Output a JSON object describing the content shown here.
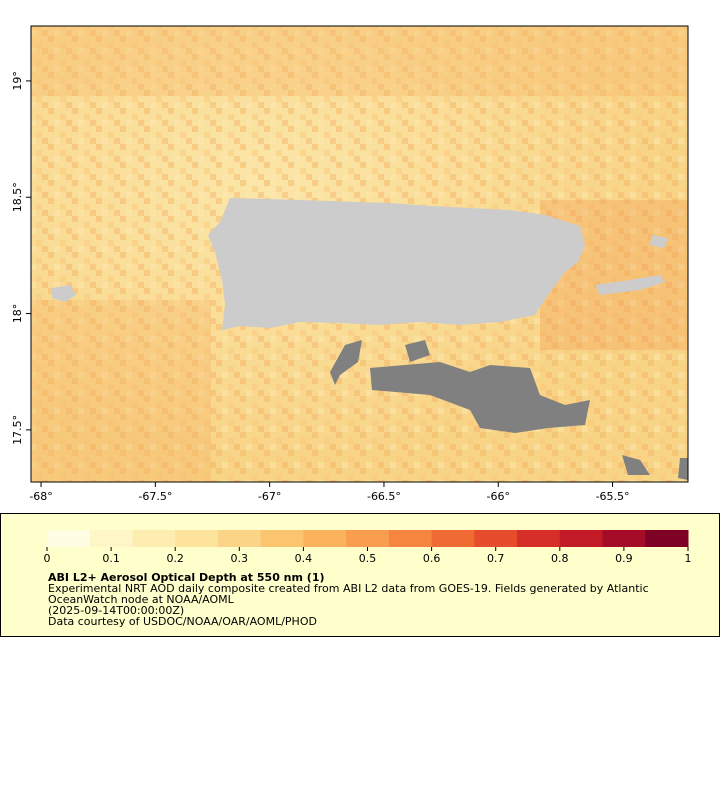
{
  "map": {
    "xlim": [
      -68.044,
      -65.17
    ],
    "ylim": [
      17.276,
      19.236
    ],
    "xticks": [
      {
        "value": -68,
        "label": "-68°"
      },
      {
        "value": -67.5,
        "label": "-67.5°"
      },
      {
        "value": -67,
        "label": "-67°"
      },
      {
        "value": -66.5,
        "label": "-66.5°"
      },
      {
        "value": -66,
        "label": "-66°"
      },
      {
        "value": -65.5,
        "label": "-65.5°"
      }
    ],
    "yticks": [
      {
        "value": 17.5,
        "label": "17.5°"
      },
      {
        "value": 18,
        "label": "18°"
      },
      {
        "value": 18.5,
        "label": "18.5°"
      },
      {
        "value": 19,
        "label": "19°"
      }
    ]
  },
  "legend": {
    "colorbar_lim": [
      0,
      1
    ],
    "colorbar_ticks": [
      0,
      0.1,
      0.2,
      0.3,
      0.4,
      0.5,
      0.6,
      0.7,
      0.8,
      0.9,
      1
    ],
    "colormap": [
      "#fffee4",
      "#fff6c8",
      "#feedb0",
      "#fde39b",
      "#fcd487",
      "#fbc46f",
      "#fab25d",
      "#f99d4f",
      "#f6853f",
      "#f06a34",
      "#e64d2c",
      "#d62f27",
      "#c21a27",
      "#a50c27",
      "#7f0025"
    ],
    "title": "ABI L2+ Aerosol Optical Depth at 550 nm (1)",
    "lines": [
      "Experimental NRT AOD daily composite created from ABI L2 data from GOES-19. Fields generated by Atlantic",
      "OceanWatch node at NOAA/AOML",
      "(2025-09-14T00:00:00Z)",
      "Data courtesy of USDOC/NOAA/OAR/AOML/PHOD"
    ]
  }
}
